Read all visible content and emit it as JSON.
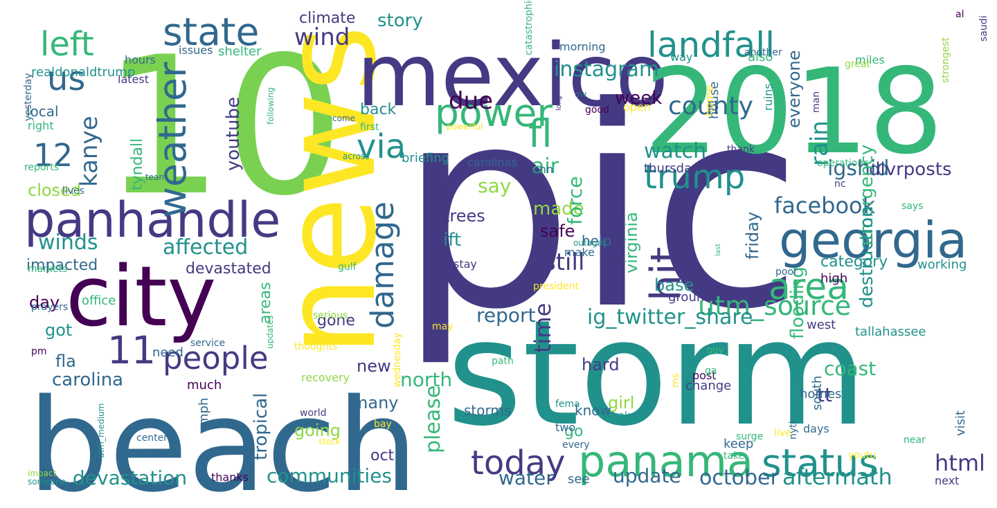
{
  "palette": [
    "#440154",
    "#443a83",
    "#31688e",
    "#21918c",
    "#35b779",
    "#90d743",
    "#fde725"
  ],
  "words": [
    {
      "text": "pic",
      "color": "#443a83"
    },
    {
      "text": "storm",
      "color": "#21918c"
    },
    {
      "text": "10",
      "color": "#7ad151"
    },
    {
      "text": "news",
      "color": "#fde725"
    },
    {
      "text": "mexico",
      "color": "#443a83"
    },
    {
      "text": "2018",
      "color": "#35b779"
    },
    {
      "text": "beach",
      "color": "#31688e"
    },
    {
      "text": "city",
      "color": "#440154"
    },
    {
      "text": "panhandle",
      "color": "#443a83"
    },
    {
      "text": "georgia",
      "color": "#31688e"
    },
    {
      "text": "panama",
      "color": "#35b779"
    },
    {
      "text": "landfall",
      "color": "#21918c"
    },
    {
      "text": "status",
      "color": "#21918c"
    },
    {
      "text": "weather",
      "color": "#31688e"
    },
    {
      "text": "hit",
      "color": "#443a83"
    },
    {
      "text": "power",
      "color": "#35b779"
    },
    {
      "text": "state",
      "color": "#31688e"
    },
    {
      "text": "today",
      "color": "#443a83"
    },
    {
      "text": "trump",
      "color": "#21918c"
    },
    {
      "text": "area",
      "color": "#35b779"
    },
    {
      "text": "damage",
      "color": "#31688e"
    },
    {
      "text": "via",
      "color": "#21918c"
    },
    {
      "text": "us",
      "color": "#31688e"
    },
    {
      "text": "left",
      "color": "#35b779"
    },
    {
      "text": "people",
      "color": "#443a83"
    },
    {
      "text": "fl",
      "color": "#35b779"
    },
    {
      "text": "utm_source",
      "color": "#35b779"
    },
    {
      "text": "11",
      "color": "#443a83"
    },
    {
      "text": "county",
      "color": "#31688e"
    },
    {
      "text": "12",
      "color": "#31688e"
    },
    {
      "text": "ig_twitter_share",
      "color": "#21918c"
    },
    {
      "text": "facebook",
      "color": "#31688e"
    },
    {
      "text": "html",
      "color": "#443a83"
    },
    {
      "text": "aftermath",
      "color": "#21918c"
    },
    {
      "text": "october",
      "color": "#31688e"
    },
    {
      "text": "instagram",
      "color": "#21918c"
    },
    {
      "text": "watch",
      "color": "#21918c"
    },
    {
      "text": "kanye",
      "color": "#31688e"
    },
    {
      "text": "winds",
      "color": "#21918c"
    },
    {
      "text": "affected",
      "color": "#21918c"
    },
    {
      "text": "still",
      "color": "#443a83"
    },
    {
      "text": "time",
      "color": "#443a83"
    },
    {
      "text": "rain",
      "color": "#21918c"
    },
    {
      "text": "air",
      "color": "#35b779"
    },
    {
      "text": "due",
      "color": "#440154"
    },
    {
      "text": "wind",
      "color": "#443a83"
    },
    {
      "text": "igshid",
      "color": "#31688e"
    },
    {
      "text": "dlvrposts",
      "color": "#443a83"
    },
    {
      "text": "emergency",
      "color": "#35b779"
    },
    {
      "text": "destruction",
      "color": "#21918c"
    },
    {
      "text": "devastation",
      "color": "#21918c"
    },
    {
      "text": "communities",
      "color": "#21918c"
    },
    {
      "text": "update",
      "color": "#31688e"
    },
    {
      "text": "water",
      "color": "#31688e"
    },
    {
      "text": "coast",
      "color": "#35b779"
    },
    {
      "text": "please",
      "color": "#35b779"
    },
    {
      "text": "carolina",
      "color": "#31688e"
    },
    {
      "text": "north",
      "color": "#35b779"
    },
    {
      "text": "report",
      "color": "#31688e"
    },
    {
      "text": "say",
      "color": "#90d743"
    },
    {
      "text": "made",
      "color": "#90d743"
    },
    {
      "text": "story",
      "color": "#21918c"
    },
    {
      "text": "youtube",
      "color": "#443a83"
    },
    {
      "text": "tyndall",
      "color": "#35b779"
    },
    {
      "text": "closed",
      "color": "#90d743"
    },
    {
      "text": "impacted",
      "color": "#31688e"
    },
    {
      "text": "devastated",
      "color": "#443a83"
    },
    {
      "text": "back",
      "color": "#21918c"
    },
    {
      "text": "climate",
      "color": "#443a83"
    },
    {
      "text": "week",
      "color": "#440154"
    },
    {
      "text": "force",
      "color": "#35b779"
    },
    {
      "text": "help",
      "color": "#31688e"
    },
    {
      "text": "safe",
      "color": "#440154"
    },
    {
      "text": "ift",
      "color": "#21918c"
    },
    {
      "text": "trees",
      "color": "#443a83"
    },
    {
      "text": "friday",
      "color": "#31688e"
    },
    {
      "text": "virginia",
      "color": "#35b779"
    },
    {
      "text": "base",
      "color": "#21918c"
    },
    {
      "text": "category",
      "color": "#21918c"
    },
    {
      "text": "everyone",
      "color": "#31688e"
    },
    {
      "text": "flooding",
      "color": "#35b779"
    },
    {
      "text": "tt",
      "color": "#443a83"
    },
    {
      "text": "hard",
      "color": "#443a83"
    },
    {
      "text": "girl",
      "color": "#90d743"
    },
    {
      "text": "new",
      "color": "#443a83"
    },
    {
      "text": "many",
      "color": "#31688e"
    },
    {
      "text": "gone",
      "color": "#443a83"
    },
    {
      "text": "areas",
      "color": "#35b779"
    },
    {
      "text": "got",
      "color": "#21918c"
    },
    {
      "text": "fla",
      "color": "#31688e"
    },
    {
      "text": "day",
      "color": "#440154"
    },
    {
      "text": "local",
      "color": "#31688e"
    },
    {
      "text": "tropical",
      "color": "#31688e"
    },
    {
      "text": "going",
      "color": "#90d743"
    },
    {
      "text": "oct",
      "color": "#443a83"
    },
    {
      "text": "go",
      "color": "#35b779"
    },
    {
      "text": "know",
      "color": "#31688e"
    },
    {
      "text": "storms",
      "color": "#31688e"
    },
    {
      "text": "see",
      "color": "#31688e"
    },
    {
      "text": "thanks",
      "color": "#440154"
    },
    {
      "text": "mph",
      "color": "#31688e"
    },
    {
      "text": "much",
      "color": "#440154"
    },
    {
      "text": "need",
      "color": "#31688e"
    },
    {
      "text": "office",
      "color": "#35b779"
    },
    {
      "text": "change",
      "color": "#443a83"
    },
    {
      "text": "homes",
      "color": "#31688e"
    },
    {
      "text": "south",
      "color": "#31688e"
    },
    {
      "text": "visit",
      "color": "#31688e"
    },
    {
      "text": "working",
      "color": "#21918c"
    },
    {
      "text": "tallahassee",
      "color": "#21918c"
    },
    {
      "text": "west",
      "color": "#443a83"
    },
    {
      "text": "high",
      "color": "#440154"
    },
    {
      "text": "ground",
      "color": "#443a83"
    },
    {
      "text": "thursday",
      "color": "#443a83"
    },
    {
      "text": "briefing",
      "color": "#21918c"
    },
    {
      "text": "carolinas",
      "color": "#31688e"
    },
    {
      "text": "cnn",
      "color": "#31688e"
    },
    {
      "text": "stay",
      "color": "#443a83"
    },
    {
      "text": "house",
      "color": "#31688e"
    },
    {
      "text": "ruins",
      "color": "#21918c"
    },
    {
      "text": "home",
      "color": "#fde725"
    },
    {
      "text": "open",
      "color": "#fde725"
    },
    {
      "text": "realdonaldtrump",
      "color": "#21918c"
    },
    {
      "text": "hours",
      "color": "#31688e"
    },
    {
      "text": "latest",
      "color": "#443a83"
    },
    {
      "text": "issues",
      "color": "#31688e"
    },
    {
      "text": "shelter",
      "color": "#35b779"
    },
    {
      "text": "yesterday",
      "color": "#31688e"
    },
    {
      "text": "right",
      "color": "#35b779"
    },
    {
      "text": "reports",
      "color": "#35b779"
    },
    {
      "text": "lives",
      "color": "#31688e"
    },
    {
      "text": "team",
      "color": "#31688e"
    },
    {
      "text": "markets",
      "color": "#35b779"
    },
    {
      "text": "prayers",
      "color": "#31688e"
    },
    {
      "text": "pm",
      "color": "#440154"
    },
    {
      "text": "center",
      "color": "#31688e"
    },
    {
      "text": "utm_medium",
      "color": "#21918c"
    },
    {
      "text": "world",
      "color": "#443a83"
    },
    {
      "text": "impact",
      "color": "#90d743"
    },
    {
      "text": "someone",
      "color": "#21918c"
    },
    {
      "text": "service",
      "color": "#31688e"
    },
    {
      "text": "updates",
      "color": "#35b779"
    },
    {
      "text": "serious",
      "color": "#90d743"
    },
    {
      "text": "wednesday",
      "color": "#fde725"
    },
    {
      "text": "thoughts",
      "color": "#fde725"
    },
    {
      "text": "recovery",
      "color": "#90d743"
    },
    {
      "text": "stock",
      "color": "#fde725"
    },
    {
      "text": "bay",
      "color": "#fde725"
    },
    {
      "text": "make",
      "color": "#31688e"
    },
    {
      "text": "gulf",
      "color": "#35b779"
    },
    {
      "text": "outages",
      "color": "#21918c"
    },
    {
      "text": "powerful",
      "color": "#fde725"
    },
    {
      "text": "following",
      "color": "#35b779"
    },
    {
      "text": "across",
      "color": "#21918c"
    },
    {
      "text": "first",
      "color": "#35b779"
    },
    {
      "text": "come",
      "color": "#31688e"
    },
    {
      "text": "ow",
      "color": "#31688e"
    },
    {
      "text": "long",
      "color": "#443a83"
    },
    {
      "text": "good",
      "color": "#440154"
    },
    {
      "text": "thank",
      "color": "#443a83"
    },
    {
      "text": "nc",
      "color": "#443a83"
    },
    {
      "text": "last",
      "color": "#35b779"
    },
    {
      "text": "president",
      "color": "#fde725"
    },
    {
      "text": "may",
      "color": "#fde725"
    },
    {
      "text": "path",
      "color": "#35b779"
    },
    {
      "text": "post",
      "color": "#440154"
    },
    {
      "text": "fema",
      "color": "#21918c"
    },
    {
      "text": "two",
      "color": "#31688e"
    },
    {
      "text": "every",
      "color": "#31688e"
    },
    {
      "text": "keep",
      "color": "#31688e"
    },
    {
      "text": "take",
      "color": "#35b779"
    },
    {
      "text": "gov",
      "color": "#35b779"
    },
    {
      "text": "ga",
      "color": "#35b779"
    },
    {
      "text": "ms",
      "color": "#fde725"
    },
    {
      "text": "wake",
      "color": "#21918c"
    },
    {
      "text": "surge",
      "color": "#35b779"
    },
    {
      "text": "live",
      "color": "#fde725"
    },
    {
      "text": "days",
      "color": "#31688e"
    },
    {
      "text": "nyti",
      "color": "#31688e"
    },
    {
      "text": "youtu",
      "color": "#fde725"
    },
    {
      "text": "near",
      "color": "#35b779"
    },
    {
      "text": "next",
      "color": "#443a83"
    },
    {
      "text": "catastrophic",
      "color": "#35b779"
    },
    {
      "text": "morning",
      "color": "#31688e"
    },
    {
      "text": "way",
      "color": "#21918c"
    },
    {
      "text": "also",
      "color": "#35b779"
    },
    {
      "text": "another",
      "color": "#31688e"
    },
    {
      "text": "al",
      "color": "#440154"
    },
    {
      "text": "miles",
      "color": "#35b779"
    },
    {
      "text": "saudi",
      "color": "#443a83"
    },
    {
      "text": "great",
      "color": "#90d743"
    },
    {
      "text": "strongest",
      "color": "#90d743"
    },
    {
      "text": "man",
      "color": "#443a83"
    },
    {
      "text": "operations",
      "color": "#35b779"
    },
    {
      "text": "says",
      "color": "#35b779"
    },
    {
      "text": "poor",
      "color": "#31688e"
    },
    {
      "text": "residents",
      "color": "#31688e"
    },
    {
      "text": "well",
      "color": "#35b779"
    }
  ]
}
